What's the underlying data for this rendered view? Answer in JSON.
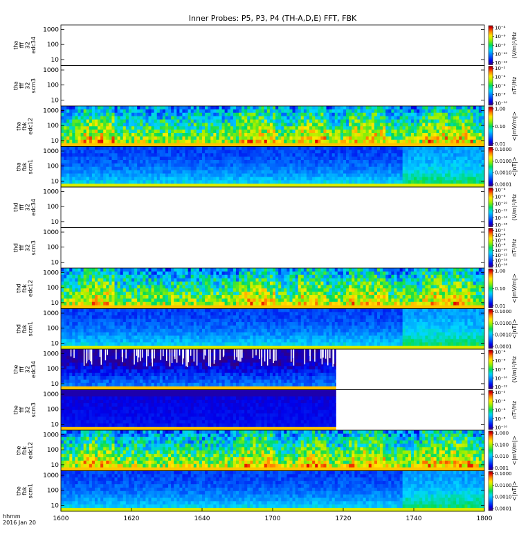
{
  "chart_data": {
    "type": "heatmap",
    "title": "Inner Probes: P5, P3, P4 (TH-A,D,E) FFT, FBK",
    "x_axis": {
      "ticks": [
        "1600",
        "1620",
        "1640",
        "1700",
        "1720",
        "1740",
        "1800"
      ],
      "label_line1": "hhmm",
      "label_line2": "2016 Jan 20",
      "range_minutes": [
        0,
        120
      ]
    },
    "y_axis": {
      "scale": "log",
      "ticks": [
        "10",
        "100",
        "1000"
      ],
      "range": [
        4,
        2000
      ]
    },
    "panels": [
      {
        "label": [
          "tha",
          "fff",
          "32",
          "edc34"
        ],
        "kind": "fff_e",
        "status": "empty",
        "colorbar": {
          "unit": "(V/m)²/Hz",
          "ticks": [
            "10⁻¹²",
            "10⁻¹⁰",
            "10⁻⁸",
            "10⁻⁶",
            "10⁻⁴"
          ]
        }
      },
      {
        "label": [
          "tha",
          "fff",
          "32",
          "scm3"
        ],
        "kind": "fff_b",
        "status": "empty",
        "colorbar": {
          "unit": "nT²/Hz",
          "ticks": [
            "10⁻¹⁰",
            "10⁻⁸",
            "10⁻⁶",
            "10⁻⁴",
            "10⁻²"
          ]
        }
      },
      {
        "label": [
          "tha",
          "fbk",
          "edc12"
        ],
        "kind": "fbk_e",
        "status": "data",
        "end_minute": 120,
        "colorbar": {
          "unit": "<|mV/m|>",
          "ticks": [
            "0.01",
            "0.10",
            "1.00"
          ]
        }
      },
      {
        "label": [
          "tha",
          "fbk",
          "scm1"
        ],
        "kind": "fbk_b",
        "status": "data",
        "end_minute": 120,
        "colorbar": {
          "unit": "<|nT|>",
          "ticks": [
            "0.0001",
            "0.0010",
            "0.0100",
            "0.1000"
          ]
        }
      },
      {
        "label": [
          "thd",
          "fff",
          "32",
          "edc34"
        ],
        "kind": "fff_e",
        "status": "empty",
        "colorbar": {
          "unit": "(V/m)²/Hz",
          "ticks": [
            "10⁻¹⁶",
            "10⁻¹⁴",
            "10⁻¹²",
            "10⁻¹⁰",
            "10⁻⁸",
            "10⁻⁶"
          ]
        }
      },
      {
        "label": [
          "thd",
          "fff",
          "32",
          "scm3"
        ],
        "kind": "fff_b",
        "status": "empty",
        "colorbar": {
          "unit": "nT²/Hz",
          "ticks": [
            "10⁻¹⁶",
            "10⁻¹⁴",
            "10⁻¹²",
            "10⁻¹⁰",
            "10⁻⁸",
            "10⁻⁶",
            "10⁻⁴",
            "10⁻²"
          ]
        }
      },
      {
        "label": [
          "thd",
          "fbk",
          "edc12"
        ],
        "kind": "fbk_e",
        "status": "data",
        "end_minute": 120,
        "colorbar": {
          "unit": "<|mV/m|>",
          "ticks": [
            "0.01",
            "0.10",
            "1.00"
          ]
        }
      },
      {
        "label": [
          "thd",
          "fbk",
          "scm1"
        ],
        "kind": "fbk_b",
        "status": "data",
        "end_minute": 120,
        "colorbar": {
          "unit": "<|nT|>",
          "ticks": [
            "0.0001",
            "0.0010",
            "0.0100",
            "0.1000"
          ]
        }
      },
      {
        "label": [
          "the",
          "fff",
          "32",
          "edc34"
        ],
        "kind": "fff_e",
        "status": "data",
        "end_minute": 78,
        "colorbar": {
          "unit": "(V/m)²/Hz",
          "ticks": [
            "10⁻¹²",
            "10⁻¹⁰",
            "10⁻⁸",
            "10⁻⁶",
            "10⁻⁴"
          ]
        }
      },
      {
        "label": [
          "the",
          "fff",
          "32",
          "scm3"
        ],
        "kind": "fff_b",
        "status": "data",
        "end_minute": 78,
        "colorbar": {
          "unit": "nT²/Hz",
          "ticks": [
            "10⁻¹⁰",
            "10⁻⁸",
            "10⁻⁶",
            "10⁻⁴",
            "10⁻²"
          ]
        }
      },
      {
        "label": [
          "the",
          "fbk",
          "edc12"
        ],
        "kind": "fbk_e",
        "status": "data",
        "end_minute": 120,
        "colorbar": {
          "unit": "<|mV/m|>",
          "ticks": [
            "0.001",
            "0.010",
            "0.100",
            "1.000"
          ]
        }
      },
      {
        "label": [
          "the",
          "fbk",
          "scm1"
        ],
        "kind": "fbk_b",
        "status": "data",
        "end_minute": 120,
        "colorbar": {
          "unit": "<|nT|>",
          "ticks": [
            "0.0001",
            "0.0010",
            "0.0100",
            "0.1000"
          ]
        }
      }
    ]
  }
}
